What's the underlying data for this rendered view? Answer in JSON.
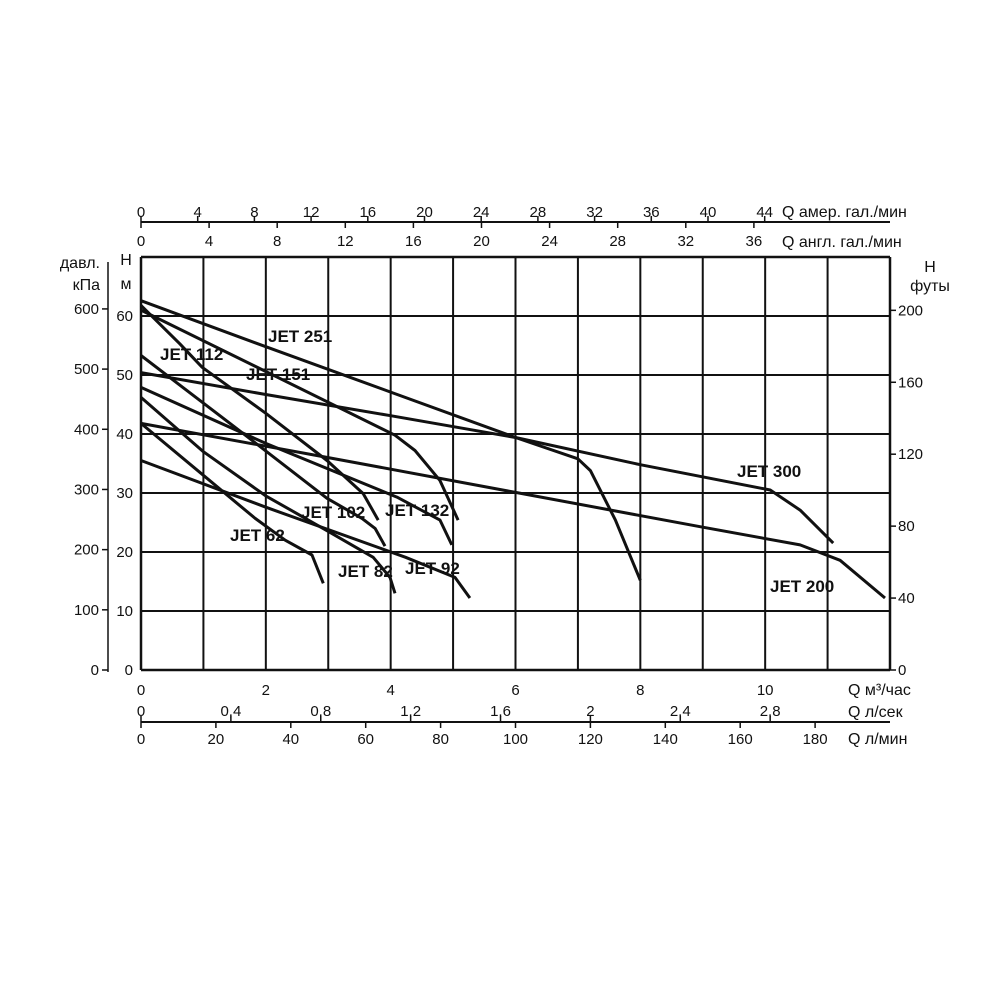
{
  "chart_data": {
    "type": "line",
    "grid": true,
    "x": {
      "label": "Q м³/час",
      "ticks": [
        0,
        2,
        4,
        6,
        8,
        10
      ],
      "range": [
        0,
        12
      ]
    },
    "y": {
      "label_top": "H",
      "label_unit": "м",
      "ticks": [
        0,
        10,
        20,
        30,
        40,
        50,
        60
      ],
      "range": [
        0,
        70
      ]
    },
    "y_left_secondary": {
      "label_top": "давл.",
      "label_unit": "кПа",
      "ticks": [
        0,
        100,
        200,
        300,
        400,
        500,
        600
      ]
    },
    "y_right_secondary": {
      "label_top": "H",
      "label_unit": "футы",
      "ticks": [
        0,
        40,
        80,
        120,
        160,
        200
      ]
    },
    "x_top_us": {
      "label": "Q  амер. гал./мин",
      "ticks": [
        0,
        4,
        8,
        12,
        16,
        20,
        24,
        28,
        32,
        36,
        40,
        44
      ]
    },
    "x_top_imp": {
      "label": "Q  англ. гал./мин",
      "ticks": [
        0,
        4,
        8,
        12,
        16,
        20,
        24,
        28,
        32,
        36
      ]
    },
    "x_bottom_ls": {
      "label": "Q  л/сек",
      "ticks": [
        "0",
        "0,4",
        "0,8",
        "1,2",
        "1,6",
        "2",
        "2,4",
        "2,8"
      ]
    },
    "x_bottom_lmin": {
      "label": "Q  л/мин",
      "ticks": [
        0,
        20,
        40,
        60,
        80,
        100,
        120,
        140,
        160,
        180
      ]
    },
    "series": [
      {
        "name": "JET 251",
        "points": [
          [
            0,
            62.6
          ],
          [
            2,
            54.8
          ],
          [
            4,
            47.1
          ],
          [
            6,
            39.4
          ],
          [
            7,
            35.8
          ],
          [
            7.2,
            33.8
          ],
          [
            7.6,
            25.4
          ],
          [
            8.0,
            15.2
          ]
        ]
      },
      {
        "name": "JET 300",
        "points": [
          [
            0,
            50.4
          ],
          [
            2,
            46.7
          ],
          [
            4,
            43.1
          ],
          [
            6,
            39.4
          ],
          [
            8,
            34.8
          ],
          [
            10.08,
            30.5
          ],
          [
            10.56,
            27.1
          ],
          [
            11.09,
            21.5
          ]
        ]
      },
      {
        "name": "JET 200",
        "points": [
          [
            0,
            41.8
          ],
          [
            3,
            36.0
          ],
          [
            6,
            30.1
          ],
          [
            9,
            24.2
          ],
          [
            10.56,
            21.2
          ],
          [
            11.2,
            18.6
          ],
          [
            11.92,
            12.2
          ]
        ]
      },
      {
        "name": "JET 151",
        "points": [
          [
            0,
            61
          ],
          [
            2,
            50.6
          ],
          [
            4.07,
            39.8
          ],
          [
            4.39,
            37.2
          ],
          [
            4.79,
            32.1
          ],
          [
            5.08,
            25.4
          ]
        ]
      },
      {
        "name": "JET 112",
        "points": [
          [
            0,
            61.8
          ],
          [
            0.62,
            55.3
          ],
          [
            0.98,
            51.3
          ],
          [
            2,
            43.5
          ],
          [
            2.98,
            35.5
          ],
          [
            3.56,
            29.9
          ],
          [
            3.8,
            25.4
          ]
        ]
      },
      {
        "name": "JET 102",
        "points": [
          [
            0,
            53.3
          ],
          [
            1.5,
            41.2
          ],
          [
            2.98,
            29.1
          ],
          [
            3.54,
            25.7
          ],
          [
            3.75,
            24
          ],
          [
            3.91,
            21
          ]
        ]
      },
      {
        "name": "JET 132",
        "points": [
          [
            0,
            47.9
          ],
          [
            2,
            38.4
          ],
          [
            4.1,
            29.3
          ],
          [
            4.79,
            25.4
          ],
          [
            4.98,
            21.2
          ]
        ]
      },
      {
        "name": "JET 82",
        "points": [
          [
            0,
            46.2
          ],
          [
            1,
            37
          ],
          [
            2,
            29.5
          ],
          [
            3,
            23.5
          ],
          [
            3.72,
            19.1
          ],
          [
            3.99,
            15.7
          ],
          [
            4.07,
            13
          ]
        ]
      },
      {
        "name": "JET 62",
        "points": [
          [
            0,
            41.8
          ],
          [
            1,
            33
          ],
          [
            1.83,
            25.7
          ],
          [
            2.31,
            22
          ],
          [
            2.74,
            19.5
          ],
          [
            2.92,
            14.7
          ]
        ]
      },
      {
        "name": "JET 92",
        "points": [
          [
            0,
            35.5
          ],
          [
            2,
            27.6
          ],
          [
            4.24,
            19.1
          ],
          [
            5.03,
            15.7
          ],
          [
            5.27,
            12.2
          ]
        ]
      }
    ]
  }
}
